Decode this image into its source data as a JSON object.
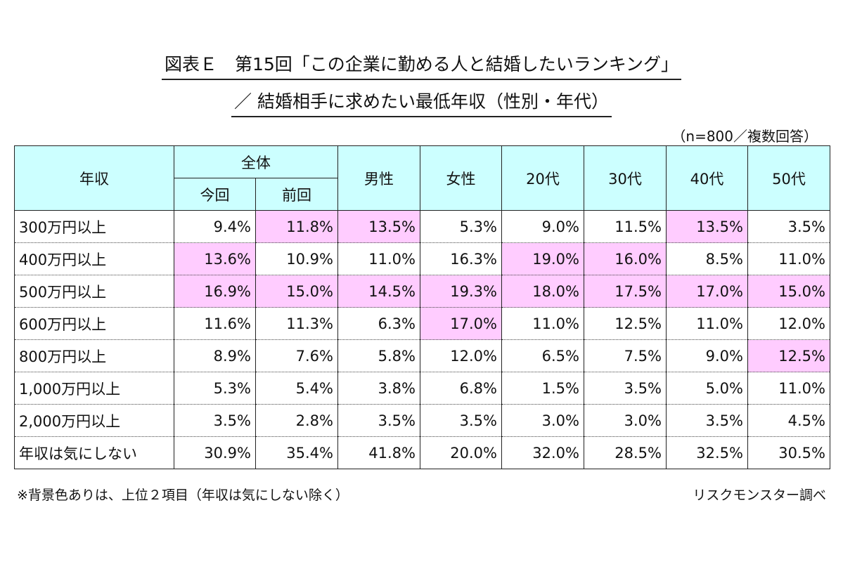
{
  "title_line1": "図表Ｅ　第15回「この企業に勤める人と結婚したいランキング」",
  "title_line2": "／ 結婚相手に求めたい最低年収（性別・年代）",
  "sample_note": "（n=800／複数回答）",
  "footnote": "※背景色ありは、上位２項目（年収は気にしない除く）",
  "source": "リスクモンスター調べ",
  "colors": {
    "header_bg": "#ccffff",
    "highlight": "#ffccff",
    "border": "#222222"
  },
  "chart_data": {
    "type": "table",
    "row_header": "年収",
    "group_header": "全体",
    "columns": [
      "今回",
      "前回",
      "男性",
      "女性",
      "20代",
      "30代",
      "40代",
      "50代"
    ],
    "rows": [
      {
        "label": "300万円以上",
        "values": [
          "9.4%",
          "11.8%",
          "13.5%",
          "5.3%",
          "9.0%",
          "11.5%",
          "13.5%",
          "3.5%"
        ],
        "highlight": [
          false,
          true,
          true,
          false,
          false,
          false,
          true,
          false
        ]
      },
      {
        "label": "400万円以上",
        "values": [
          "13.6%",
          "10.9%",
          "11.0%",
          "16.3%",
          "19.0%",
          "16.0%",
          "8.5%",
          "11.0%"
        ],
        "highlight": [
          true,
          false,
          false,
          false,
          true,
          true,
          false,
          false
        ]
      },
      {
        "label": "500万円以上",
        "values": [
          "16.9%",
          "15.0%",
          "14.5%",
          "19.3%",
          "18.0%",
          "17.5%",
          "17.0%",
          "15.0%"
        ],
        "highlight": [
          true,
          true,
          true,
          true,
          true,
          true,
          true,
          true
        ]
      },
      {
        "label": "600万円以上",
        "values": [
          "11.6%",
          "11.3%",
          "6.3%",
          "17.0%",
          "11.0%",
          "12.5%",
          "11.0%",
          "12.0%"
        ],
        "highlight": [
          false,
          false,
          false,
          true,
          false,
          false,
          false,
          false
        ]
      },
      {
        "label": "800万円以上",
        "values": [
          "8.9%",
          "7.6%",
          "5.8%",
          "12.0%",
          "6.5%",
          "7.5%",
          "9.0%",
          "12.5%"
        ],
        "highlight": [
          false,
          false,
          false,
          false,
          false,
          false,
          false,
          true
        ]
      },
      {
        "label": "1,000万円以上",
        "values": [
          "5.3%",
          "5.4%",
          "3.8%",
          "6.8%",
          "1.5%",
          "3.5%",
          "5.0%",
          "11.0%"
        ],
        "highlight": [
          false,
          false,
          false,
          false,
          false,
          false,
          false,
          false
        ]
      },
      {
        "label": "2,000万円以上",
        "values": [
          "3.5%",
          "2.8%",
          "3.5%",
          "3.5%",
          "3.0%",
          "3.0%",
          "3.5%",
          "4.5%"
        ],
        "highlight": [
          false,
          false,
          false,
          false,
          false,
          false,
          false,
          false
        ]
      },
      {
        "label": "年収は気にしない",
        "values": [
          "30.9%",
          "35.4%",
          "41.8%",
          "20.0%",
          "32.0%",
          "28.5%",
          "32.5%",
          "30.5%"
        ],
        "highlight": [
          false,
          false,
          false,
          false,
          false,
          false,
          false,
          false
        ]
      }
    ]
  }
}
